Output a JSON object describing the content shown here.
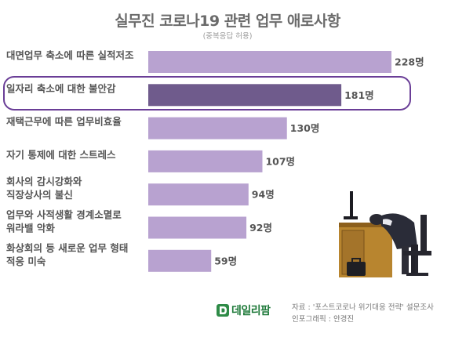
{
  "header": {
    "title": "실무진 코로나19 관련 업무 애로사항",
    "subtitle": "(중복응답 허용)"
  },
  "chart_data": {
    "type": "bar",
    "orientation": "horizontal",
    "title": "실무진 코로나19 관련 업무 애로사항",
    "subtitle": "(중복응답 허용)",
    "categories": [
      [
        "대면업무 축소에 따른 실적저조"
      ],
      [
        "일자리 축소에 대한 불안감"
      ],
      [
        "재택근무에 따른 업무비효율"
      ],
      [
        "자기 통제에 대한 스트레스"
      ],
      [
        "회사의 감시강화와",
        "직장상사의 불신"
      ],
      [
        "업무와 사적생활 경계소멸로",
        "워라밸 악화"
      ],
      [
        "화상회의 등 새로운 업무 형태",
        "적응 미숙"
      ]
    ],
    "values": [
      228,
      181,
      130,
      107,
      94,
      92,
      59
    ],
    "value_labels": [
      "228명",
      "181명",
      "130명",
      "107명",
      "94명",
      "92명",
      "59명"
    ],
    "highlight_index": 1,
    "colors": {
      "bar": "#b8a2d0",
      "highlight_bar": "#6f5b8c",
      "highlight_border": "#6a3e97"
    }
  },
  "footer": {
    "logo_text": "데일리팜",
    "source_line1": "자료 : '포스트코로나 위기대응 전략' 설문조사",
    "source_line2": "인포그래픽 : 안경진"
  }
}
